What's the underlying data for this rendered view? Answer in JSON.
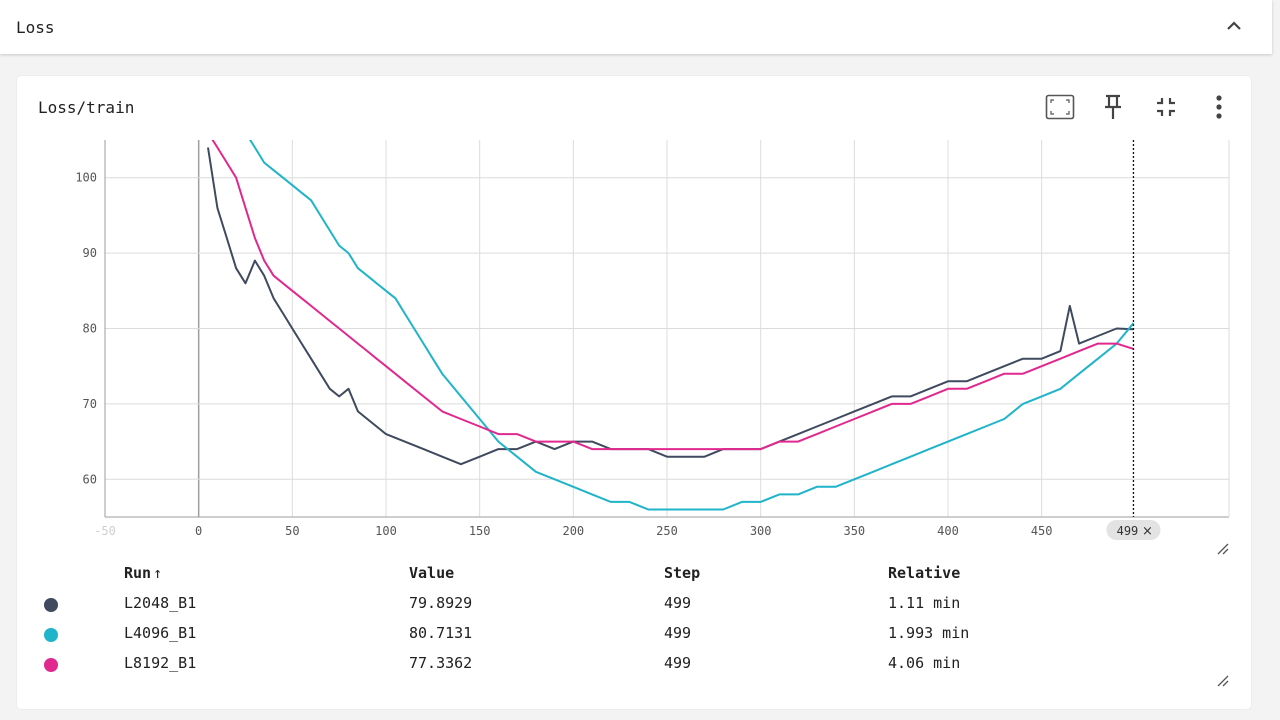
{
  "group": {
    "title": "Loss"
  },
  "card": {
    "title": "Loss/train"
  },
  "icons": {
    "collapse": "chevron-up-icon",
    "fit": "fit-domain-icon",
    "pin": "pin-icon",
    "fullscreen": "collapse-fullscreen-icon",
    "more": "more-vert-icon",
    "resize": "resize-handle-icon"
  },
  "legend": {
    "headers": {
      "run": "Run",
      "sort": "↑",
      "value": "Value",
      "step": "Step",
      "relative": "Relative"
    },
    "rows": [
      {
        "run": "L2048_B1",
        "value": "79.8929",
        "step": "499",
        "relative": "1.11 min",
        "color": "#3f4a5e"
      },
      {
        "run": "L4096_B1",
        "value": "80.7131",
        "step": "499",
        "relative": "1.993 min",
        "color": "#1fb4c9"
      },
      {
        "run": "L8192_B1",
        "value": "77.3362",
        "step": "499",
        "relative": "4.06 min",
        "color": "#e0288f"
      }
    ]
  },
  "chart_data": {
    "type": "line",
    "title": "Loss/train",
    "xlabel": "",
    "ylabel": "",
    "xlim": [
      -50,
      550
    ],
    "ylim": [
      55,
      105
    ],
    "x_ticks": [
      "-50",
      "0",
      "50",
      "100",
      "150",
      "200",
      "250",
      "300",
      "350",
      "400",
      "450",
      "500"
    ],
    "y_ticks": [
      "60",
      "70",
      "80",
      "90",
      "100"
    ],
    "grid": true,
    "cursor": {
      "step": 499,
      "label": "499"
    },
    "series": [
      {
        "name": "L2048_B1",
        "color": "#3f4a5e",
        "x": [
          5,
          10,
          15,
          20,
          25,
          30,
          35,
          40,
          45,
          50,
          55,
          60,
          65,
          70,
          75,
          80,
          85,
          90,
          95,
          100,
          110,
          120,
          130,
          140,
          150,
          160,
          170,
          180,
          190,
          200,
          210,
          220,
          230,
          240,
          250,
          260,
          270,
          280,
          290,
          300,
          310,
          320,
          330,
          340,
          350,
          360,
          370,
          380,
          390,
          400,
          410,
          420,
          430,
          440,
          450,
          460,
          465,
          470,
          480,
          490,
          499
        ],
        "y": [
          104,
          96,
          92,
          88,
          86,
          89,
          87,
          84,
          82,
          80,
          78,
          76,
          74,
          72,
          71,
          72,
          69,
          68,
          67,
          66,
          65,
          64,
          63,
          62,
          63,
          64,
          64,
          65,
          64,
          65,
          65,
          64,
          64,
          64,
          63,
          63,
          63,
          64,
          64,
          64,
          65,
          66,
          67,
          68,
          69,
          70,
          71,
          71,
          72,
          73,
          73,
          74,
          75,
          76,
          76,
          77,
          83,
          78,
          79,
          80,
          79.9
        ]
      },
      {
        "name": "L4096_B1",
        "color": "#1fb4c9",
        "x": [
          25,
          30,
          35,
          40,
          45,
          50,
          55,
          60,
          65,
          70,
          75,
          80,
          85,
          90,
          95,
          100,
          105,
          110,
          115,
          120,
          125,
          130,
          140,
          150,
          160,
          170,
          180,
          190,
          200,
          210,
          220,
          230,
          240,
          250,
          260,
          270,
          280,
          290,
          300,
          310,
          320,
          330,
          340,
          350,
          360,
          370,
          380,
          390,
          400,
          410,
          420,
          430,
          440,
          450,
          460,
          470,
          480,
          490,
          499
        ],
        "y": [
          106,
          104,
          102,
          101,
          100,
          99,
          98,
          97,
          95,
          93,
          91,
          90,
          88,
          87,
          86,
          85,
          84,
          82,
          80,
          78,
          76,
          74,
          71,
          68,
          65,
          63,
          61,
          60,
          59,
          58,
          57,
          57,
          56,
          56,
          56,
          56,
          56,
          57,
          57,
          58,
          58,
          59,
          59,
          60,
          61,
          62,
          63,
          64,
          65,
          66,
          67,
          68,
          70,
          71,
          72,
          74,
          76,
          78,
          80.7
        ]
      },
      {
        "name": "L8192_B1",
        "color": "#e0288f",
        "x": [
          5,
          10,
          15,
          20,
          25,
          30,
          35,
          40,
          45,
          50,
          55,
          60,
          65,
          70,
          75,
          80,
          85,
          90,
          95,
          100,
          110,
          120,
          130,
          140,
          150,
          160,
          170,
          180,
          190,
          200,
          210,
          220,
          230,
          240,
          250,
          260,
          270,
          280,
          290,
          300,
          310,
          320,
          330,
          340,
          350,
          360,
          370,
          380,
          390,
          400,
          410,
          420,
          430,
          440,
          450,
          460,
          470,
          480,
          490,
          499
        ],
        "y": [
          106,
          104,
          102,
          100,
          96,
          92,
          89,
          87,
          86,
          85,
          84,
          83,
          82,
          81,
          80,
          79,
          78,
          77,
          76,
          75,
          73,
          71,
          69,
          68,
          67,
          66,
          66,
          65,
          65,
          65,
          64,
          64,
          64,
          64,
          64,
          64,
          64,
          64,
          64,
          64,
          65,
          65,
          66,
          67,
          68,
          69,
          70,
          70,
          71,
          72,
          72,
          73,
          74,
          74,
          75,
          76,
          77,
          78,
          78,
          77.3
        ]
      }
    ]
  }
}
